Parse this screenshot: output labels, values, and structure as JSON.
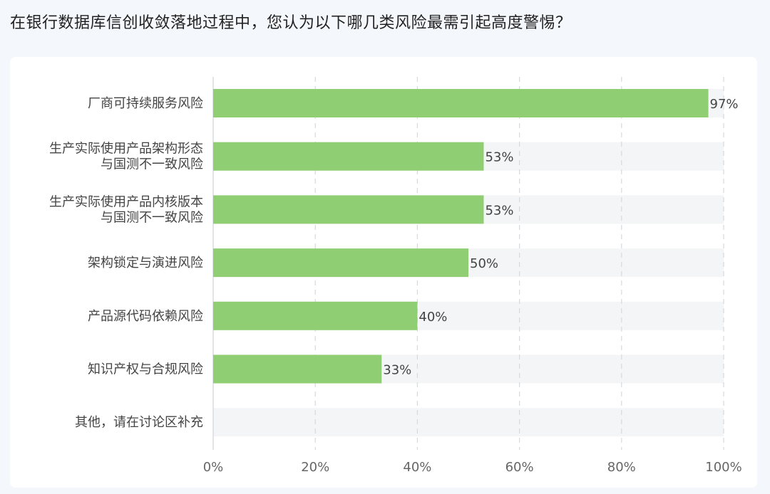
{
  "question": "在银行数据库信创收敛落地过程中，您认为以下哪几类风险最需引起高度警惕？",
  "chart_data": {
    "type": "bar",
    "orientation": "horizontal",
    "categories": [
      [
        "厂商可持续服务风险"
      ],
      [
        "生产实际使用产品架构形态",
        "与国测不一致风险"
      ],
      [
        "生产实际使用产品内核版本",
        "与国测不一致风险"
      ],
      [
        "架构锁定与演进风险"
      ],
      [
        "产品源代码依赖风险"
      ],
      [
        "知识产权与合规风险"
      ],
      [
        "其他，请在讨论区补充"
      ]
    ],
    "values": [
      97,
      53,
      53,
      50,
      40,
      33,
      0
    ],
    "value_labels": [
      "97%",
      "53%",
      "53%",
      "50%",
      "40%",
      "33%",
      ""
    ],
    "xlim": [
      0,
      100
    ],
    "xticks": [
      0,
      20,
      40,
      60,
      80,
      100
    ],
    "xtick_labels": [
      "0%",
      "20%",
      "40%",
      "60%",
      "80%",
      "100%"
    ],
    "grid": true,
    "colors": {
      "bar": "#8fce72",
      "track": "#f4f5f6",
      "grid": "#d6d9de"
    }
  }
}
